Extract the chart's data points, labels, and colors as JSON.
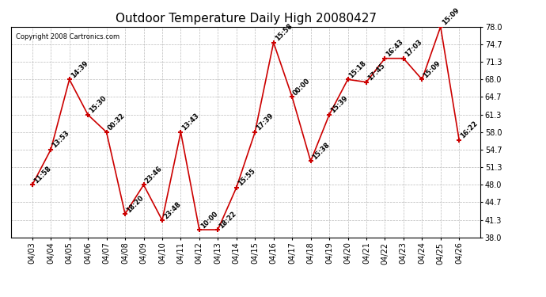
{
  "title": "Outdoor Temperature Daily High 20080427",
  "copyright_text": "Copyright 2008 Cartronics.com",
  "dates": [
    "04/03",
    "04/04",
    "04/05",
    "04/06",
    "04/07",
    "04/08",
    "04/09",
    "04/10",
    "04/11",
    "04/12",
    "04/13",
    "04/14",
    "04/15",
    "04/16",
    "04/17",
    "04/18",
    "04/19",
    "04/20",
    "04/21",
    "04/22",
    "04/23",
    "04/24",
    "04/25",
    "04/26"
  ],
  "temps": [
    48.0,
    54.7,
    68.0,
    61.3,
    58.0,
    42.5,
    48.0,
    41.3,
    58.0,
    39.5,
    39.5,
    47.5,
    58.0,
    75.0,
    64.7,
    52.5,
    61.3,
    68.0,
    67.5,
    72.0,
    72.0,
    68.0,
    78.0,
    56.5
  ],
  "time_labels": [
    "11:58",
    "13:53",
    "14:39",
    "15:30",
    "00:32",
    "18:20",
    "23:46",
    "23:48",
    "13:43",
    "10:00",
    "18:22",
    "15:55",
    "17:39",
    "15:58",
    "00:00",
    "15:38",
    "15:39",
    "15:18",
    "17:45",
    "16:43",
    "17:03",
    "15:09",
    "15:09",
    "16:22"
  ],
  "line_color": "#cc0000",
  "marker_color": "#cc0000",
  "bg_color": "#ffffff",
  "grid_color": "#bbbbbb",
  "ylim_min": 38.0,
  "ylim_max": 78.0,
  "yticks": [
    38.0,
    41.3,
    44.7,
    48.0,
    51.3,
    54.7,
    58.0,
    61.3,
    64.7,
    68.0,
    71.3,
    74.7,
    78.0
  ],
  "title_fontsize": 11,
  "label_fontsize": 6,
  "tick_fontsize": 7,
  "copyright_fontsize": 6
}
